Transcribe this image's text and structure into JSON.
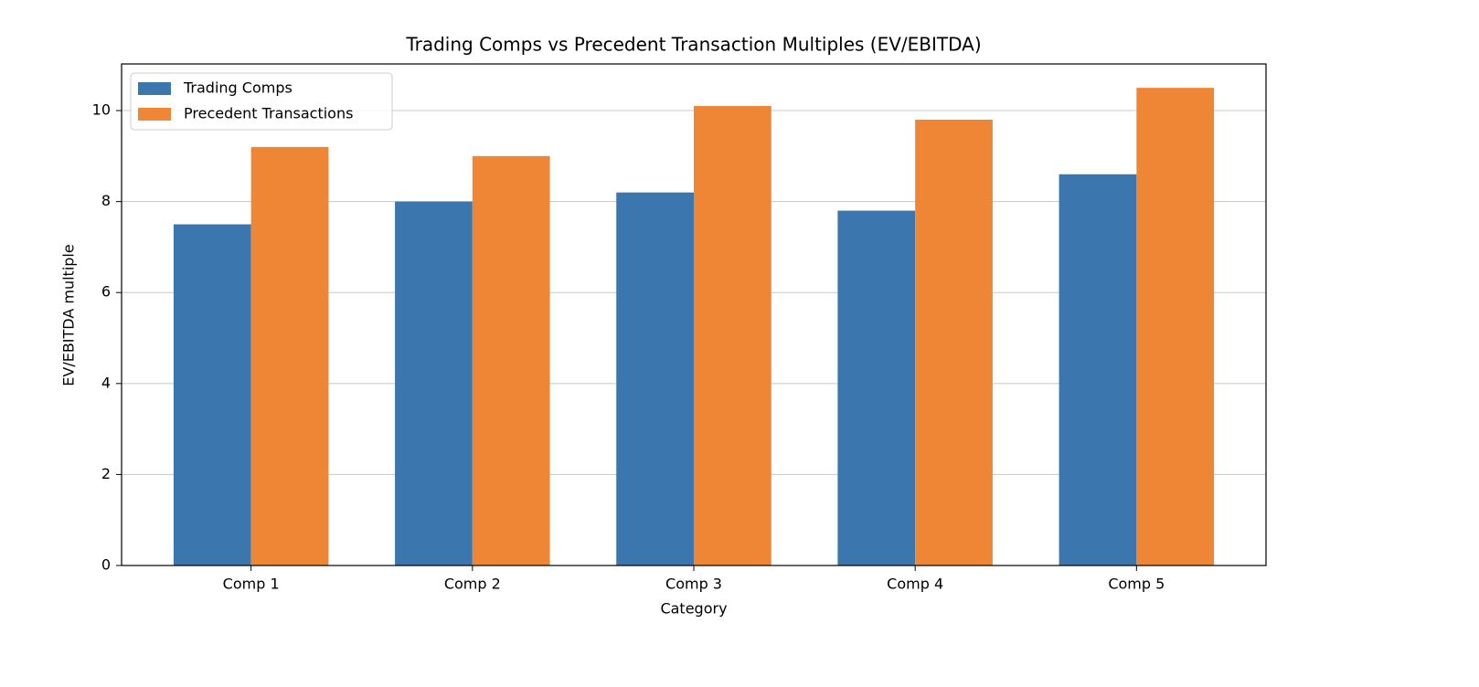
{
  "chart_data": {
    "type": "bar",
    "title": "Trading Comps vs Precedent Transaction Multiples (EV/EBITDA)",
    "x_label": "Category",
    "y_label": "EV/EBITDA multiple",
    "categories": [
      "Comp 1",
      "Comp 2",
      "Comp 3",
      "Comp 4",
      "Comp 5"
    ],
    "series": [
      {
        "name": "Trading Comps",
        "color": "#3b76af",
        "values": [
          7.5,
          8.0,
          8.2,
          7.8,
          8.6
        ]
      },
      {
        "name": "Precedent Transactions",
        "color": "#ef8636",
        "values": [
          9.2,
          9.0,
          10.1,
          9.8,
          10.5
        ]
      }
    ],
    "ylim": [
      0,
      11.025
    ],
    "yticks": [
      0,
      2,
      4,
      6,
      8,
      10
    ],
    "grid": true,
    "legend": "upper left"
  }
}
